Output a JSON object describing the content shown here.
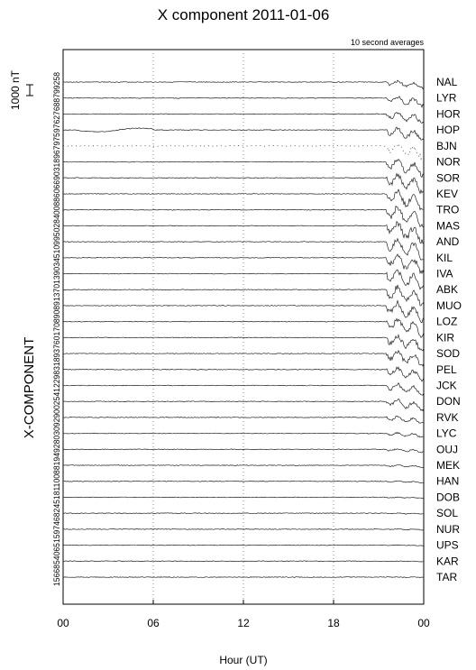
{
  "chart_data": {
    "type": "line",
    "title": "X component 2011-01-06",
    "subtitle": "10 second averages",
    "xlabel": "Hour (UT)",
    "ylabel": "X-COMPONENT",
    "scale_bar_label": "1000 nT",
    "x_ticks": [
      "00",
      "06",
      "12",
      "18",
      "00"
    ],
    "xlim": [
      0,
      24
    ],
    "grid": "dotted vertical at 06, 12, 18",
    "baselines_text": "15668540651597468245181100881949280309290025412298318937601708908913701390345109950284008860669031896797597627688799258",
    "stations": [
      {
        "name": "NAL",
        "storm": 0.6
      },
      {
        "name": "LYR",
        "storm": 0.8
      },
      {
        "name": "HOR",
        "storm": 0.9
      },
      {
        "name": "HOP",
        "storm": 1.0
      },
      {
        "name": "BJN",
        "storm": 1.2
      },
      {
        "name": "NOR",
        "storm": 1.3
      },
      {
        "name": "SOR",
        "storm": 1.4
      },
      {
        "name": "KEV",
        "storm": 1.5
      },
      {
        "name": "TRO",
        "storm": 1.6
      },
      {
        "name": "MAS",
        "storm": 1.6
      },
      {
        "name": "AND",
        "storm": 1.6
      },
      {
        "name": "KIL",
        "storm": 1.5
      },
      {
        "name": "IVA",
        "storm": 1.5
      },
      {
        "name": "ABK",
        "storm": 1.6
      },
      {
        "name": "MUO",
        "storm": 1.5
      },
      {
        "name": "LOZ",
        "storm": 1.4
      },
      {
        "name": "KIR",
        "storm": 1.3
      },
      {
        "name": "SOD",
        "storm": 1.2
      },
      {
        "name": "PEL",
        "storm": 1.0
      },
      {
        "name": "JCK",
        "storm": 0.9
      },
      {
        "name": "DON",
        "storm": 0.8
      },
      {
        "name": "RVK",
        "storm": 0.6
      },
      {
        "name": "LYC",
        "storm": 0.4
      },
      {
        "name": "OUJ",
        "storm": 0.3
      },
      {
        "name": "MEK",
        "storm": 0.2
      },
      {
        "name": "HAN",
        "storm": 0.15
      },
      {
        "name": "DOB",
        "storm": 0.1
      },
      {
        "name": "SOL",
        "storm": 0.08
      },
      {
        "name": "NUR",
        "storm": 0.06
      },
      {
        "name": "UPS",
        "storm": 0.05
      },
      {
        "name": "KAR",
        "storm": 0.04
      },
      {
        "name": "TAR",
        "storm": 0.03
      }
    ]
  }
}
